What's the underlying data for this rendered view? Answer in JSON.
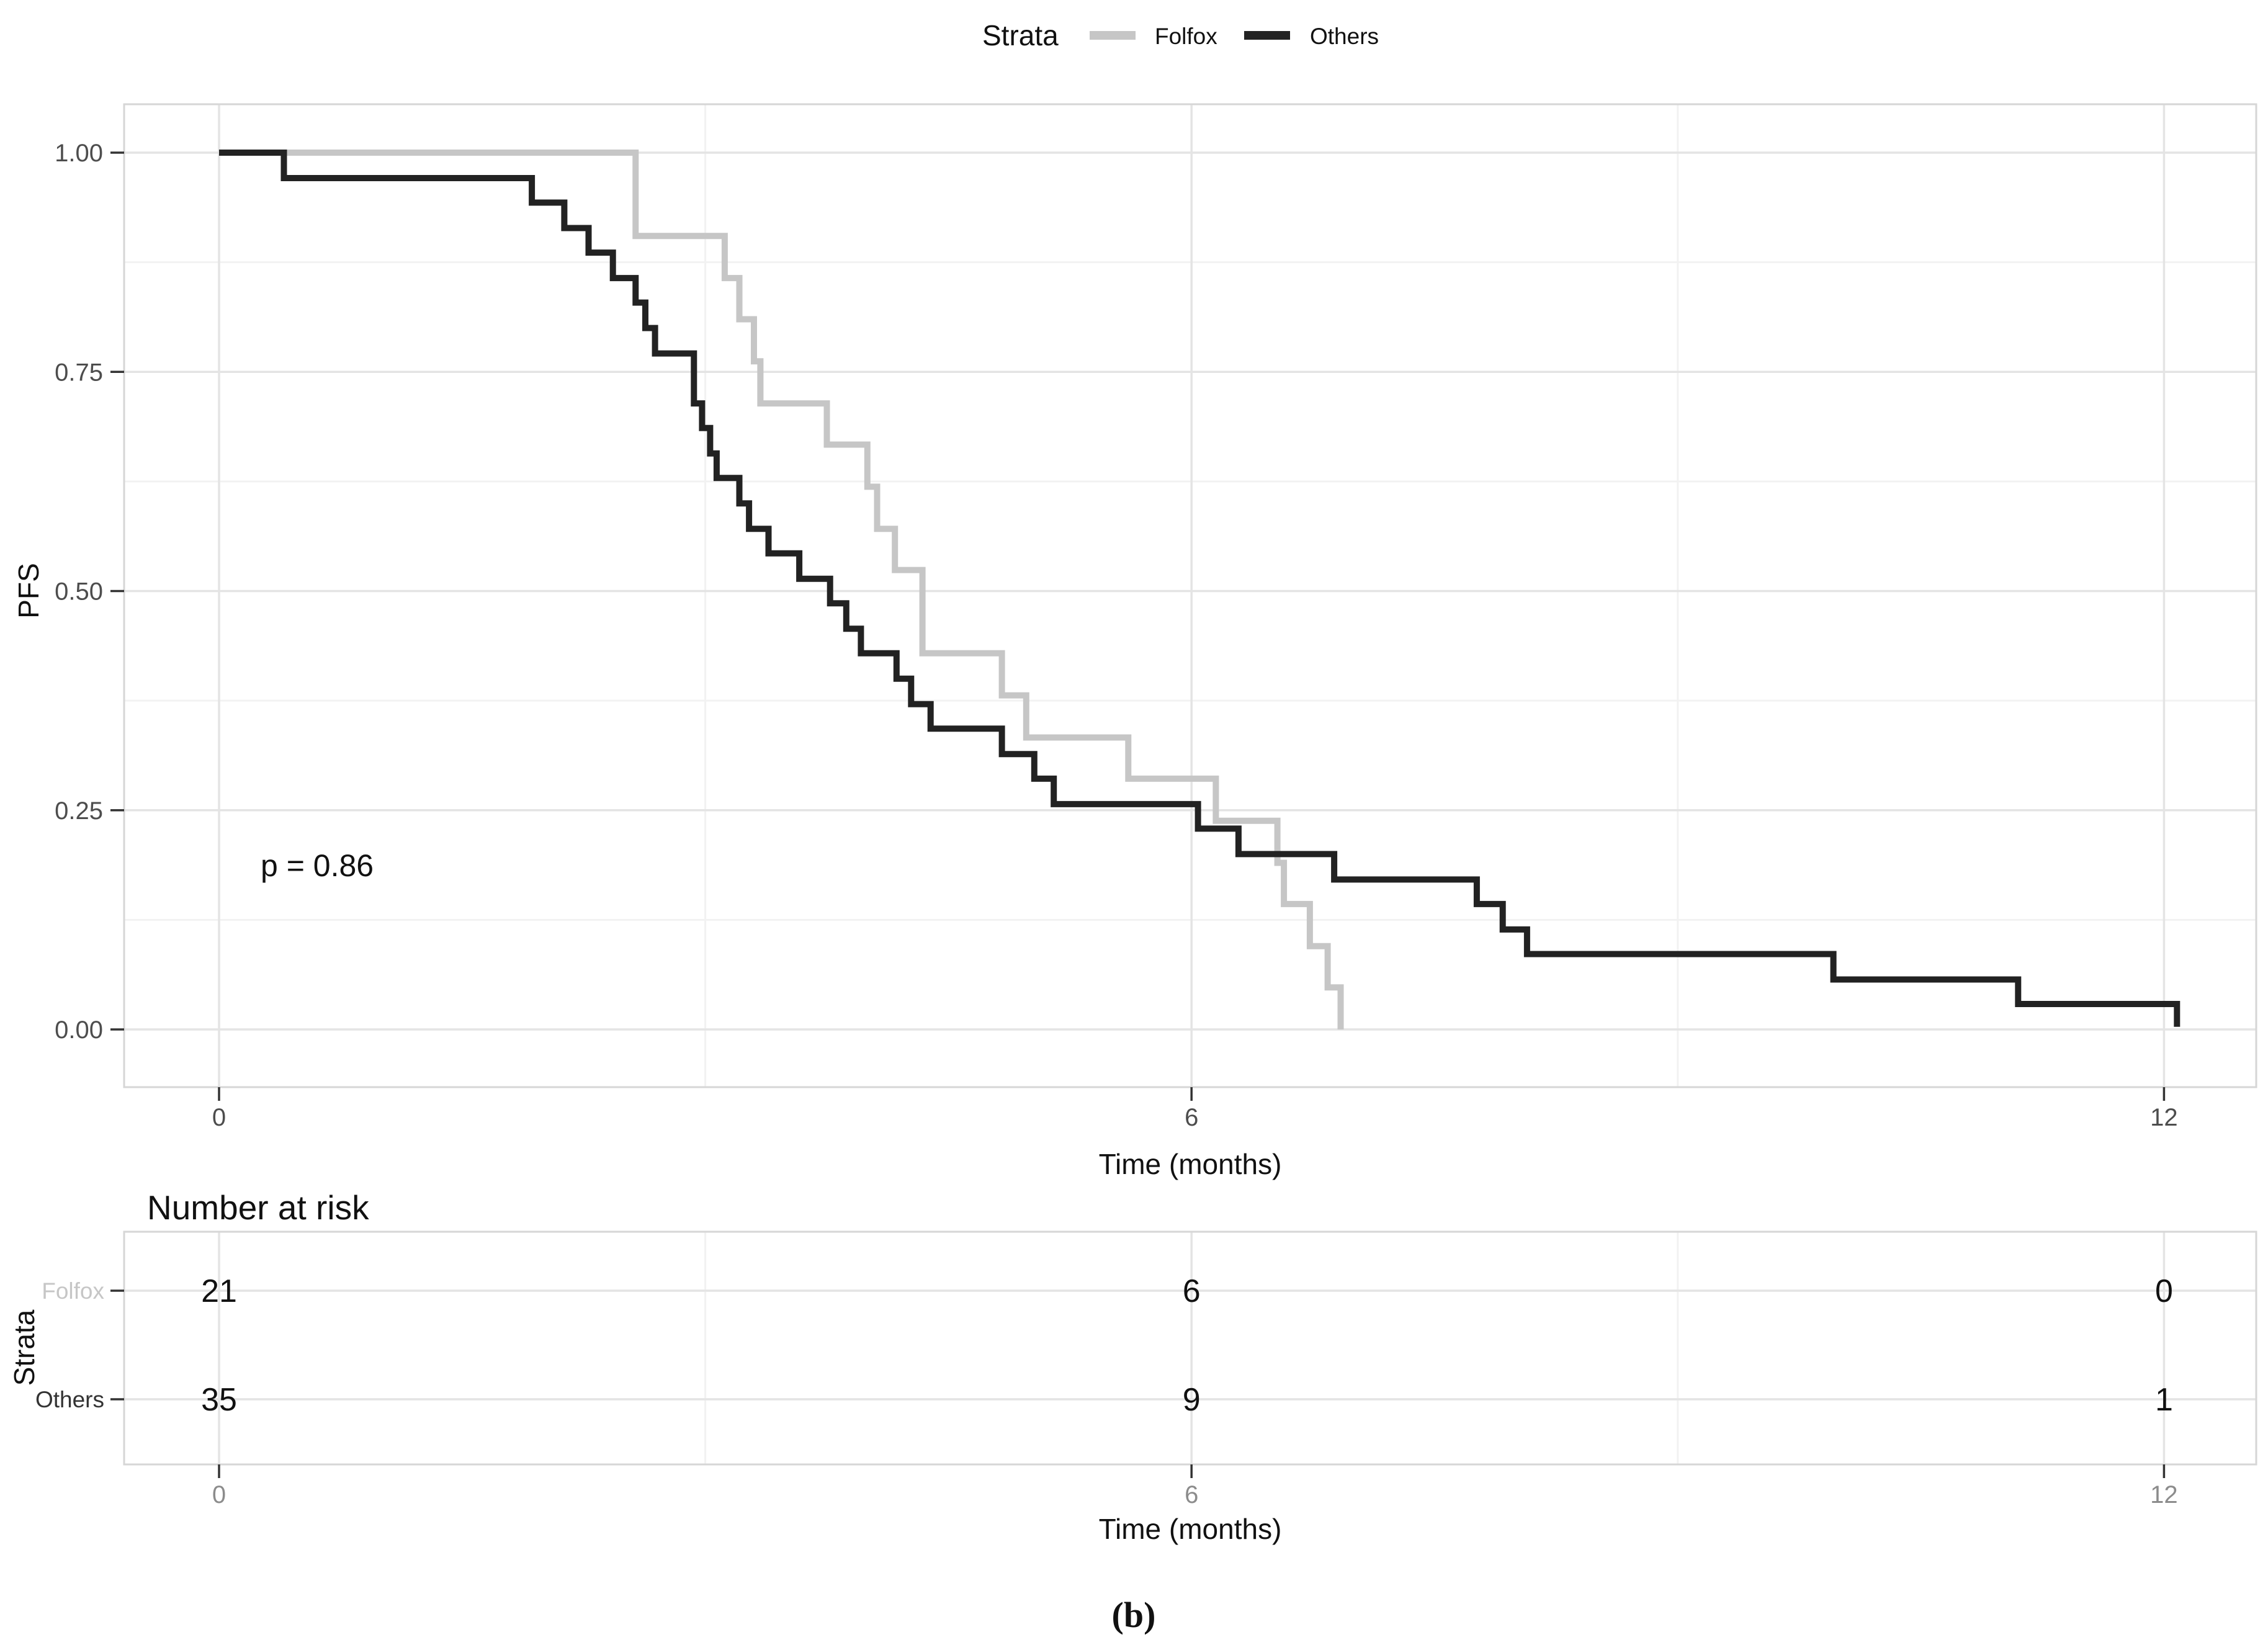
{
  "caption": "(b)",
  "chart_data": {
    "type": "line",
    "subtype": "kaplan-meier-step",
    "title": "",
    "xlabel": "Time (months)",
    "ylabel": "PFS",
    "xlim": [
      0,
      12.55
    ],
    "ylim": [
      0,
      1
    ],
    "grid": "on",
    "legend_position": "top",
    "legend": {
      "title": "Strata",
      "items": [
        {
          "label": "Folfox",
          "color": "#c6c6c6"
        },
        {
          "label": "Others",
          "color": "#222222"
        }
      ]
    },
    "annotation": {
      "text": "p = 0.86",
      "x": 0.26,
      "y": 0.175
    },
    "x_ticks": [
      {
        "v": 0,
        "label": "0"
      },
      {
        "v": 6,
        "label": "6"
      },
      {
        "v": 12,
        "label": "12"
      }
    ],
    "x_minor": [
      3,
      9
    ],
    "y_ticks": [
      {
        "v": 1.0,
        "label": "1.00"
      },
      {
        "v": 0.75,
        "label": "0.75"
      },
      {
        "v": 0.5,
        "label": "0.50"
      },
      {
        "v": 0.25,
        "label": "0.25"
      },
      {
        "v": 0.0,
        "label": "0.00"
      }
    ],
    "y_minor": [
      0.875,
      0.625,
      0.375,
      0.125
    ],
    "series": [
      {
        "name": "Folfox",
        "color": "#c6c6c6",
        "n_start": 21,
        "start": [
          0,
          1.0
        ],
        "steps": [
          [
            2.57,
            0.905
          ],
          [
            3.12,
            0.857
          ],
          [
            3.21,
            0.81
          ],
          [
            3.3,
            0.762
          ],
          [
            3.34,
            0.714
          ],
          [
            3.75,
            0.667
          ],
          [
            4.0,
            0.619
          ],
          [
            4.06,
            0.571
          ],
          [
            4.17,
            0.524
          ],
          [
            4.34,
            0.429
          ],
          [
            4.83,
            0.381
          ],
          [
            4.98,
            0.333
          ],
          [
            5.61,
            0.286
          ],
          [
            6.15,
            0.238
          ],
          [
            6.53,
            0.19
          ],
          [
            6.57,
            0.143
          ],
          [
            6.73,
            0.095
          ],
          [
            6.84,
            0.048
          ],
          [
            6.92,
            0.0
          ]
        ]
      },
      {
        "name": "Others",
        "color": "#222222",
        "n_start": 35,
        "start": [
          0,
          1.0
        ],
        "steps": [
          [
            0.4,
            0.971
          ],
          [
            1.93,
            0.943
          ],
          [
            2.13,
            0.914
          ],
          [
            2.28,
            0.886
          ],
          [
            2.43,
            0.857
          ],
          [
            2.57,
            0.829
          ],
          [
            2.63,
            0.8
          ],
          [
            2.69,
            0.771
          ],
          [
            2.93,
            0.714
          ],
          [
            2.98,
            0.686
          ],
          [
            3.03,
            0.657
          ],
          [
            3.07,
            0.629
          ],
          [
            3.21,
            0.6
          ],
          [
            3.27,
            0.571
          ],
          [
            3.39,
            0.543
          ],
          [
            3.58,
            0.514
          ],
          [
            3.77,
            0.486
          ],
          [
            3.87,
            0.457
          ],
          [
            3.96,
            0.429
          ],
          [
            4.18,
            0.4
          ],
          [
            4.27,
            0.371
          ],
          [
            4.39,
            0.343
          ],
          [
            4.83,
            0.314
          ],
          [
            5.03,
            0.286
          ],
          [
            5.15,
            0.257
          ],
          [
            6.04,
            0.229
          ],
          [
            6.29,
            0.2
          ],
          [
            6.88,
            0.171
          ],
          [
            7.76,
            0.143
          ],
          [
            7.92,
            0.114
          ],
          [
            8.07,
            0.086
          ],
          [
            9.96,
            0.057
          ],
          [
            11.1,
            0.029
          ],
          [
            12.08,
            0.003
          ]
        ]
      }
    ]
  },
  "risk_table": {
    "title": "Number at risk",
    "ylabel": "Strata",
    "xlabel": "Time (months)",
    "times": [
      0,
      6,
      12
    ],
    "x_tick_labels": [
      "0",
      "6",
      "12"
    ],
    "rows": [
      {
        "label": "Folfox",
        "color": "#c6c6c6",
        "values": [
          "21",
          "6",
          "0"
        ]
      },
      {
        "label": "Others",
        "color": "#333333",
        "values": [
          "35",
          "9",
          "1"
        ]
      }
    ]
  },
  "colors": {
    "grid_major": "#e4e4e4",
    "grid_minor": "#f2f2f2",
    "panel_border": "#d6d6d6",
    "tick_mark": "#333333"
  }
}
